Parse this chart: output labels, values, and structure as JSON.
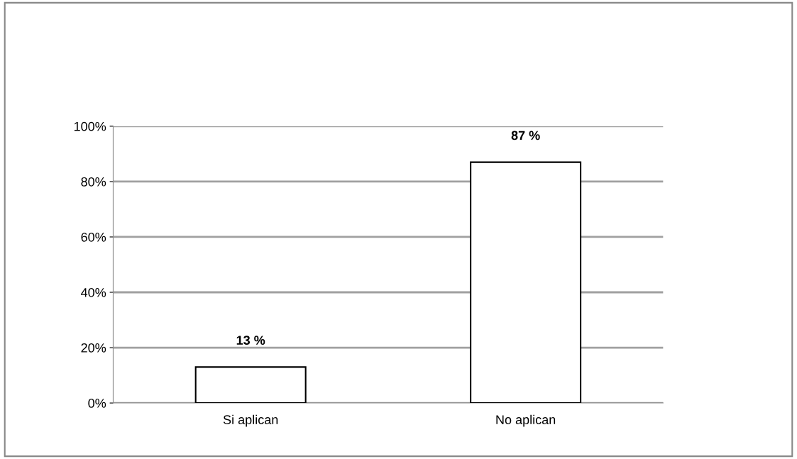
{
  "chart_data": {
    "type": "bar",
    "categories": [
      "Si aplican",
      "No aplican"
    ],
    "values": [
      13,
      87
    ],
    "color": "#ffffff",
    "value_labels": [
      "13 %",
      "87 %"
    ],
    "ylim": [
      0,
      100
    ],
    "yticks": [
      {
        "value": 0,
        "label": "0%"
      },
      {
        "value": 20,
        "label": "20%"
      },
      {
        "value": 40,
        "label": "40%"
      },
      {
        "value": 60,
        "label": "60%"
      },
      {
        "value": 80,
        "label": "80%"
      },
      {
        "value": 100,
        "label": "100%"
      }
    ],
    "grid": "y",
    "legend": false
  }
}
